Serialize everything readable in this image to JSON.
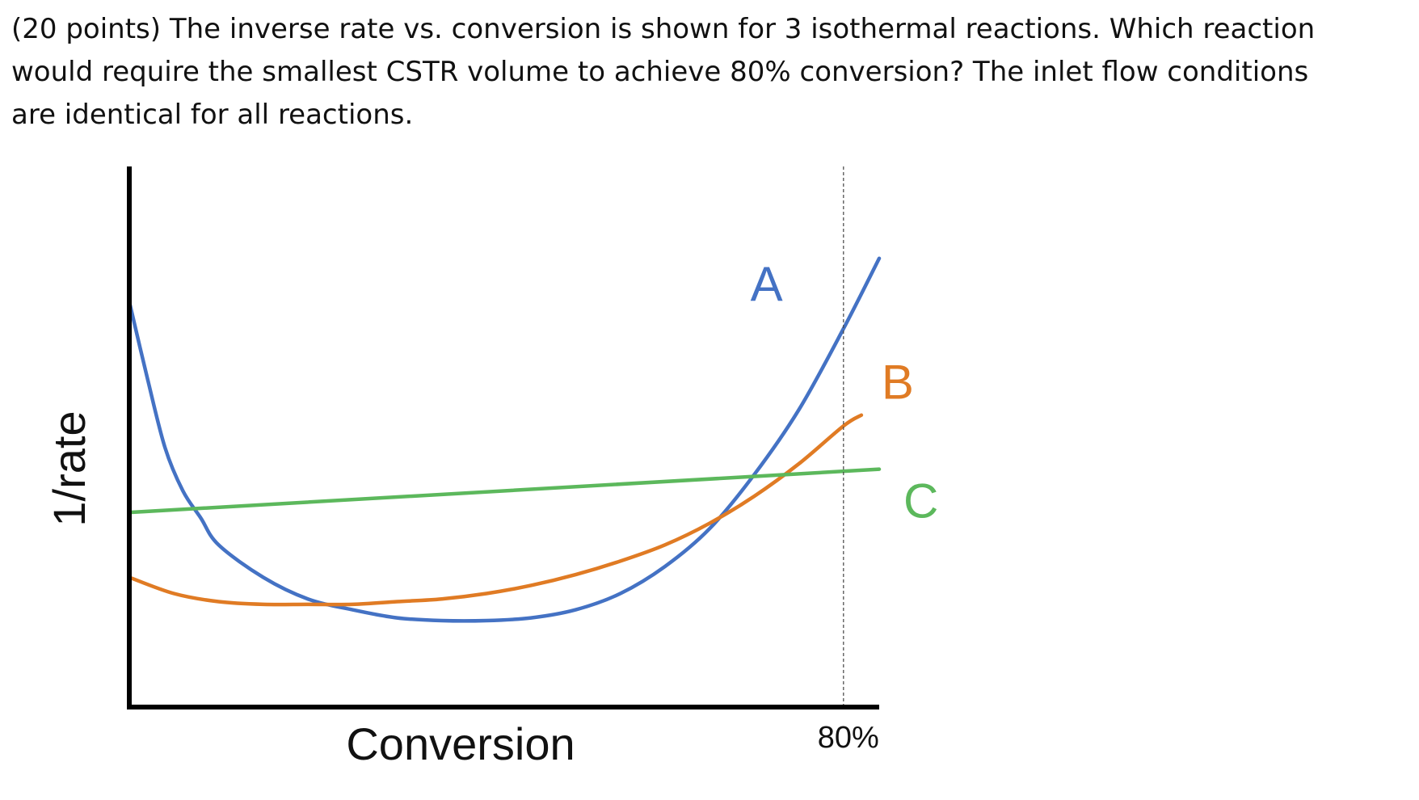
{
  "question": {
    "lines": [
      "(20 points) The inverse rate vs. conversion is shown for 3 isothermal reactions. Which reaction",
      "would require the smallest CSTR volume to achieve 80% conversion? The inlet flow conditions",
      "are identical for all reactions."
    ]
  },
  "chart_data": {
    "type": "line",
    "xlabel": "Conversion",
    "ylabel": "1/rate",
    "xlim": [
      0,
      0.84
    ],
    "ylim": [
      0,
      1
    ],
    "grid": false,
    "legend": "inline labels at line ends",
    "axis_ticks_shown": false,
    "reference_line": {
      "x": 0.8,
      "label": "80%",
      "style": "dotted"
    },
    "series": [
      {
        "name": "A",
        "color": "#4472c4",
        "x": [
          0.0,
          0.02,
          0.04,
          0.06,
          0.08,
          0.1,
          0.15,
          0.2,
          0.25,
          0.3,
          0.35,
          0.4,
          0.45,
          0.5,
          0.55,
          0.6,
          0.65,
          0.7,
          0.75,
          0.8,
          0.84
        ],
        "y": [
          0.75,
          0.61,
          0.48,
          0.4,
          0.35,
          0.3,
          0.24,
          0.2,
          0.18,
          0.165,
          0.16,
          0.16,
          0.165,
          0.18,
          0.21,
          0.26,
          0.33,
          0.43,
          0.55,
          0.7,
          0.83
        ]
      },
      {
        "name": "B",
        "color": "#e07b24",
        "x": [
          0.0,
          0.05,
          0.1,
          0.15,
          0.2,
          0.25,
          0.3,
          0.35,
          0.4,
          0.45,
          0.5,
          0.55,
          0.6,
          0.65,
          0.7,
          0.75,
          0.8,
          0.82
        ],
        "y": [
          0.24,
          0.21,
          0.195,
          0.19,
          0.19,
          0.19,
          0.195,
          0.2,
          0.21,
          0.225,
          0.245,
          0.27,
          0.3,
          0.34,
          0.39,
          0.45,
          0.52,
          0.54
        ]
      },
      {
        "name": "C",
        "color": "#5cb85c",
        "x": [
          0.0,
          0.84
        ],
        "y": [
          0.36,
          0.44
        ]
      }
    ]
  }
}
